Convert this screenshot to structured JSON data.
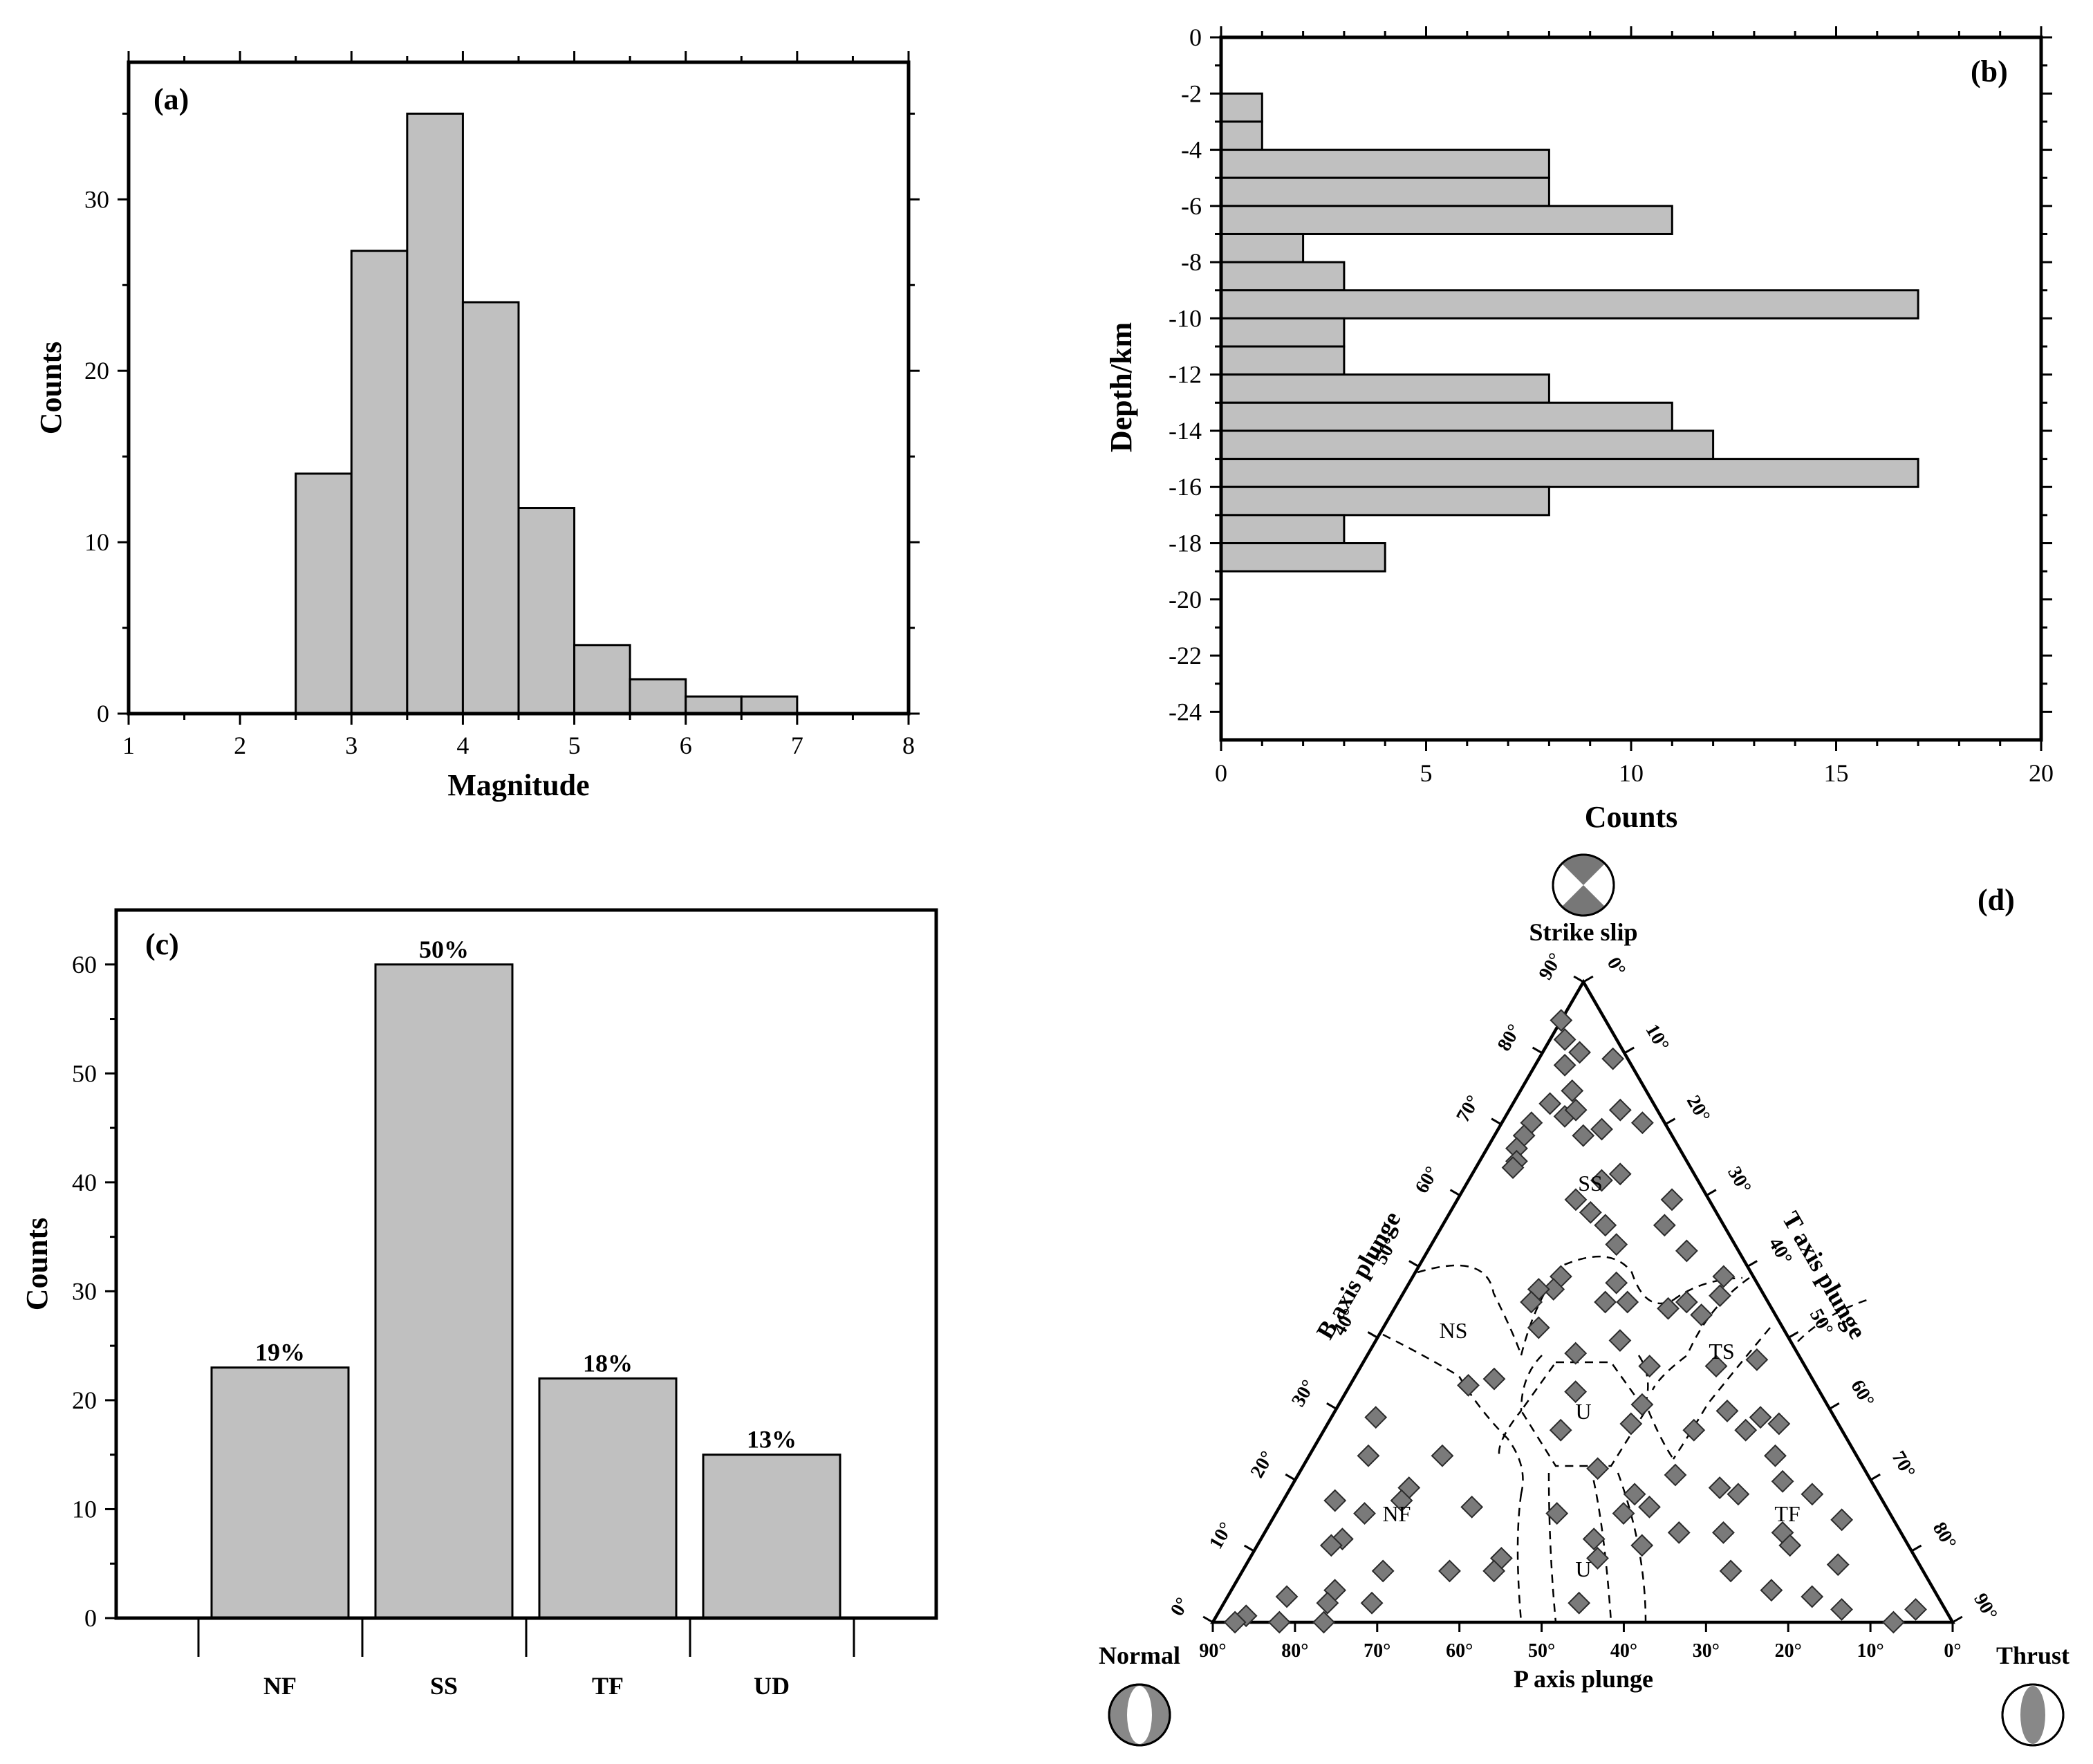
{
  "chart_data": [
    {
      "type": "bar",
      "panel": "(a)",
      "xlabel": "Magnitude",
      "ylabel": "Counts",
      "xlim": [
        1,
        8
      ],
      "ylim": [
        0,
        38
      ],
      "xticks": [
        "1",
        "2",
        "3",
        "4",
        "5",
        "6",
        "7",
        "8"
      ],
      "yticks": [
        "0",
        "10",
        "20",
        "30"
      ],
      "bins": [
        [
          2.5,
          3.0
        ],
        [
          3.0,
          3.5
        ],
        [
          3.5,
          4.0
        ],
        [
          4.0,
          4.5
        ],
        [
          4.5,
          5.0
        ],
        [
          5.0,
          5.5
        ],
        [
          5.5,
          6.0
        ],
        [
          6.0,
          6.5
        ],
        [
          6.5,
          7.0
        ]
      ],
      "values": [
        14,
        27,
        35,
        24,
        12,
        4,
        2,
        1,
        1
      ]
    },
    {
      "type": "bar",
      "orientation": "horizontal",
      "panel": "(b)",
      "xlabel": "Counts",
      "ylabel": "Depth/km",
      "xlim": [
        0,
        20
      ],
      "ylim": [
        -25,
        0
      ],
      "xticks": [
        "0",
        "5",
        "10",
        "15",
        "20"
      ],
      "yticks": [
        "0",
        "-2",
        "-4",
        "-6",
        "-8",
        "-10",
        "-12",
        "-14",
        "-16",
        "-18",
        "-20",
        "-22",
        "-24"
      ],
      "bins": [
        [
          -2,
          -3
        ],
        [
          -3,
          -4
        ],
        [
          -4,
          -5
        ],
        [
          -5,
          -6
        ],
        [
          -6,
          -7
        ],
        [
          -7,
          -8
        ],
        [
          -8,
          -9
        ],
        [
          -9,
          -10
        ],
        [
          -10,
          -11
        ],
        [
          -11,
          -12
        ],
        [
          -12,
          -13
        ],
        [
          -13,
          -14
        ],
        [
          -14,
          -15
        ],
        [
          -15,
          -16
        ],
        [
          -16,
          -17
        ],
        [
          -17,
          -18
        ],
        [
          -18,
          -19
        ]
      ],
      "values": [
        1,
        1,
        8,
        8,
        11,
        2,
        3,
        17,
        3,
        3,
        8,
        11,
        12,
        17,
        8,
        3,
        4
      ]
    },
    {
      "type": "bar",
      "panel": "(c)",
      "ylabel": "Counts",
      "ylim": [
        0,
        65
      ],
      "yticks": [
        "0",
        "10",
        "20",
        "30",
        "40",
        "50",
        "60"
      ],
      "categories": [
        "NF",
        "SS",
        "TF",
        "UD"
      ],
      "values": [
        23,
        60,
        22,
        15
      ],
      "data_labels": [
        "19%",
        "50%",
        "18%",
        "13%"
      ]
    },
    {
      "type": "scatter",
      "subtype": "ternary",
      "panel": "(d)",
      "corner_labels": {
        "top": "Strike slip",
        "left": "Normal",
        "right": "Thrust"
      },
      "axis_labels": {
        "left": "B axis plunge",
        "right": "T axis plunge",
        "bottom": "P axis plunge"
      },
      "left_ticks": [
        "0°",
        "10°",
        "20°",
        "30°",
        "40°",
        "50°",
        "60°",
        "70°",
        "80°",
        "90°"
      ],
      "right_ticks": [
        "0°",
        "10°",
        "20°",
        "30°",
        "40°",
        "50°",
        "60°",
        "70°",
        "80°",
        "90°"
      ],
      "bottom_ticks": [
        "90°",
        "80°",
        "70°",
        "60°",
        "50°",
        "40°",
        "30°",
        "20°",
        "10°",
        "0°"
      ],
      "region_labels": [
        "SS",
        "NS",
        "TS",
        "U",
        "NF",
        "TF",
        "U"
      ],
      "point_fractions_note": "each point = [normal, strike_slip, thrust] weights summing to 1",
      "points": [
        [
          0.06,
          0.94,
          0.0
        ],
        [
          0.07,
          0.91,
          0.02
        ],
        [
          0.06,
          0.89,
          0.05
        ],
        [
          0.02,
          0.88,
          0.1
        ],
        [
          0.09,
          0.87,
          0.04
        ],
        [
          0.1,
          0.83,
          0.07
        ],
        [
          0.05,
          0.8,
          0.15
        ],
        [
          0.03,
          0.78,
          0.19
        ],
        [
          0.14,
          0.81,
          0.05
        ],
        [
          0.13,
          0.79,
          0.08
        ],
        [
          0.11,
          0.8,
          0.09
        ],
        [
          0.09,
          0.77,
          0.14
        ],
        [
          0.12,
          0.76,
          0.12
        ],
        [
          0.18,
          0.78,
          0.04
        ],
        [
          0.2,
          0.76,
          0.04
        ],
        [
          0.22,
          0.74,
          0.04
        ],
        [
          0.23,
          0.72,
          0.05
        ],
        [
          0.24,
          0.71,
          0.05
        ],
        [
          0.1,
          0.7,
          0.2
        ],
        [
          0.13,
          0.69,
          0.18
        ],
        [
          0.18,
          0.66,
          0.16
        ],
        [
          0.17,
          0.64,
          0.19
        ],
        [
          0.16,
          0.62,
          0.22
        ],
        [
          0.05,
          0.66,
          0.29
        ],
        [
          0.08,
          0.62,
          0.3
        ],
        [
          0.16,
          0.59,
          0.25
        ],
        [
          0.26,
          0.54,
          0.2
        ],
        [
          0.28,
          0.52,
          0.2
        ],
        [
          0.3,
          0.52,
          0.18
        ],
        [
          0.32,
          0.5,
          0.18
        ],
        [
          0.19,
          0.53,
          0.28
        ],
        [
          0.19,
          0.5,
          0.31
        ],
        [
          0.14,
          0.49,
          0.37
        ],
        [
          0.11,
          0.5,
          0.39
        ],
        [
          0.1,
          0.48,
          0.42
        ],
        [
          0.06,
          0.51,
          0.43
        ],
        [
          0.04,
          0.54,
          0.42
        ],
        [
          0.07,
          0.58,
          0.35
        ],
        [
          0.22,
          0.5,
          0.28
        ],
        [
          0.33,
          0.46,
          0.21
        ],
        [
          0.23,
          0.44,
          0.33
        ],
        [
          0.3,
          0.42,
          0.28
        ],
        [
          0.12,
          0.4,
          0.48
        ],
        [
          0.06,
          0.41,
          0.53
        ],
        [
          0.33,
          0.36,
          0.31
        ],
        [
          0.21,
          0.4,
          0.39
        ],
        [
          0.25,
          0.34,
          0.41
        ],
        [
          0.43,
          0.38,
          0.19
        ],
        [
          0.47,
          0.37,
          0.16
        ],
        [
          0.38,
          0.3,
          0.32
        ],
        [
          0.28,
          0.31,
          0.41
        ],
        [
          0.2,
          0.3,
          0.5
        ],
        [
          0.14,
          0.33,
          0.53
        ],
        [
          0.13,
          0.3,
          0.57
        ],
        [
          0.1,
          0.32,
          0.58
        ],
        [
          0.08,
          0.31,
          0.61
        ],
        [
          0.11,
          0.26,
          0.63
        ],
        [
          0.36,
          0.24,
          0.4
        ],
        [
          0.26,
          0.23,
          0.51
        ],
        [
          0.33,
          0.2,
          0.47
        ],
        [
          0.36,
          0.17,
          0.47
        ],
        [
          0.56,
          0.26,
          0.18
        ],
        [
          0.62,
          0.32,
          0.06
        ],
        [
          0.66,
          0.26,
          0.08
        ],
        [
          0.63,
          0.21,
          0.16
        ],
        [
          0.65,
          0.19,
          0.16
        ],
        [
          0.56,
          0.18,
          0.26
        ],
        [
          0.71,
          0.17,
          0.12
        ],
        [
          0.74,
          0.19,
          0.07
        ],
        [
          0.76,
          0.13,
          0.11
        ],
        [
          0.78,
          0.12,
          0.1
        ],
        [
          0.56,
          0.1,
          0.34
        ],
        [
          0.58,
          0.08,
          0.34
        ],
        [
          0.64,
          0.08,
          0.28
        ],
        [
          0.73,
          0.08,
          0.19
        ],
        [
          0.81,
          0.05,
          0.14
        ],
        [
          0.77,
          0.03,
          0.2
        ],
        [
          0.83,
          0.03,
          0.14
        ],
        [
          0.88,
          0.04,
          0.08
        ],
        [
          0.91,
          0.0,
          0.09
        ],
        [
          0.95,
          0.01,
          0.04
        ],
        [
          0.97,
          0.0,
          0.03
        ],
        [
          0.85,
          0.0,
          0.15
        ],
        [
          0.49,
          0.03,
          0.48
        ],
        [
          0.45,
          0.17,
          0.38
        ],
        [
          0.42,
          0.13,
          0.45
        ],
        [
          0.43,
          0.1,
          0.47
        ],
        [
          0.36,
          0.12,
          0.52
        ],
        [
          0.24,
          0.14,
          0.62
        ],
        [
          0.22,
          0.05,
          0.73
        ],
        [
          0.17,
          0.04,
          0.79
        ],
        [
          0.14,
          0.02,
          0.84
        ],
        [
          0.08,
          0.0,
          0.92
        ],
        [
          0.04,
          0.02,
          0.94
        ],
        [
          0.11,
          0.09,
          0.8
        ],
        [
          0.16,
          0.14,
          0.7
        ],
        [
          0.16,
          0.12,
          0.72
        ],
        [
          0.19,
          0.2,
          0.61
        ],
        [
          0.21,
          0.21,
          0.58
        ],
        [
          0.12,
          0.22,
          0.66
        ],
        [
          0.09,
          0.2,
          0.71
        ],
        [
          0.07,
          0.16,
          0.77
        ],
        [
          0.26,
          0.08,
          0.66
        ],
        [
          0.3,
          0.14,
          0.56
        ],
        [
          0.32,
          0.18,
          0.5
        ]
      ]
    }
  ]
}
